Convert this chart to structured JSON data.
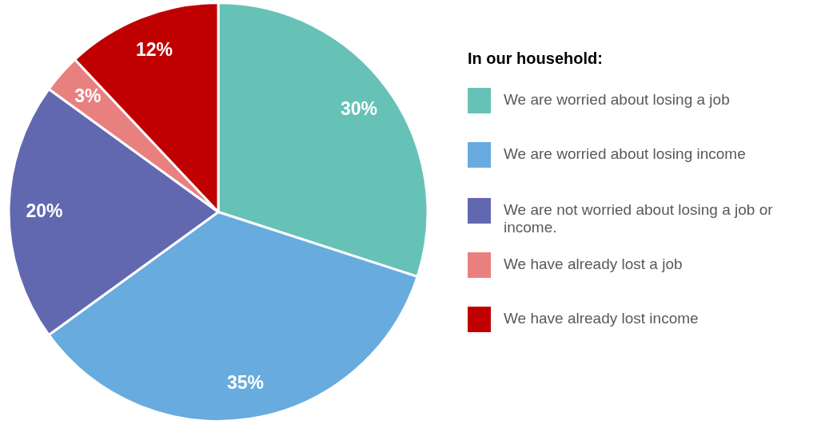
{
  "chart_data": {
    "type": "pie",
    "legend_title": "In our household:",
    "legend": "right",
    "data_labels": true,
    "categories": [
      "We are worried about losing a job",
      "We are worried about losing income",
      "We are not worried about losing a job or income.",
      "We have already lost a job",
      "We have already lost income"
    ],
    "values": [
      30,
      35,
      20,
      3,
      12
    ],
    "value_labels": [
      "30%",
      "35%",
      "20%",
      "3%",
      "12%"
    ],
    "colors": [
      "#66c2b6",
      "#68abdf",
      "#6268b0",
      "#e88080",
      "#c00000"
    ]
  }
}
